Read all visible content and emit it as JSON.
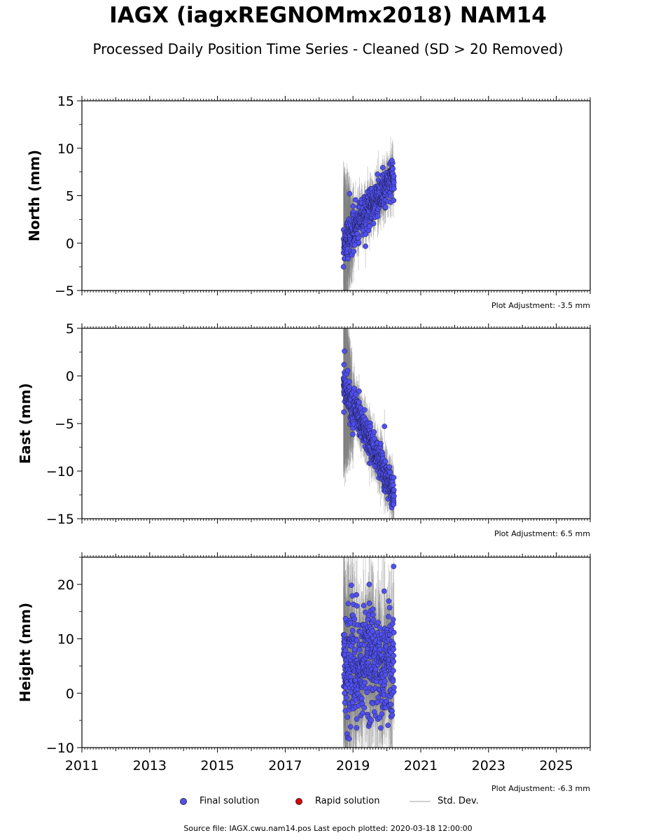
{
  "header": {
    "title": "IAGX (iagxREGNOMmx2018) NAM14",
    "subtitle": "Processed Daily Position Time Series - Cleaned (SD > 20 Removed)"
  },
  "legend": {
    "final": "Final solution",
    "rapid": "Rapid solution",
    "std": "Std. Dev."
  },
  "footer": "Source file: IAGX.cwu.nam14.pos  Last epoch plotted: 2020-03-18 12:00:00",
  "colors": {
    "final": "#5050f0",
    "rapid": "#e00000",
    "std": "#7a7a7a"
  },
  "chart_data": [
    {
      "type": "scatter",
      "ylabel": "North (mm)",
      "xlim": [
        2011,
        2026
      ],
      "ylim": [
        -5,
        15
      ],
      "yticks": [
        -5,
        0,
        5,
        10,
        15
      ],
      "xticks": [
        2011,
        2013,
        2015,
        2017,
        2019,
        2021,
        2023,
        2025
      ],
      "show_x_tick_labels": false,
      "adjustment": "Plot Adjustment: -3.5 mm",
      "trend": {
        "t0": 2018.72,
        "t1": 2020.21,
        "y0": 0.0,
        "y1": 7.0
      },
      "scatter_sd": 1.0,
      "std_early": 7.0,
      "std_late": 1.2,
      "sample_points": [
        [
          2018.72,
          -2.5
        ],
        [
          2018.9,
          5.2
        ],
        [
          2019.05,
          -0.2
        ],
        [
          2020.2,
          4.5
        ],
        [
          2020.15,
          8.7
        ]
      ]
    },
    {
      "type": "scatter",
      "ylabel": "East (mm)",
      "xlim": [
        2011,
        2026
      ],
      "ylim": [
        -15,
        5
      ],
      "yticks": [
        -15,
        -10,
        -5,
        0,
        5
      ],
      "xticks": [
        2011,
        2013,
        2015,
        2017,
        2019,
        2021,
        2023,
        2025
      ],
      "show_x_tick_labels": false,
      "adjustment": "Plot Adjustment: 6.5 mm",
      "trend": {
        "t0": 2018.72,
        "t1": 2020.21,
        "y0": -1.0,
        "y1": -12.3
      },
      "scatter_sd": 0.9,
      "std_early": 9.0,
      "std_late": 1.2,
      "sample_points": [
        [
          2018.75,
          2.6
        ],
        [
          2018.73,
          -3.8
        ],
        [
          2019.18,
          -1.6
        ],
        [
          2019.93,
          -5.3
        ],
        [
          2020.2,
          -13.5
        ]
      ]
    },
    {
      "type": "scatter",
      "ylabel": "Height (mm)",
      "xlim": [
        2011,
        2026
      ],
      "ylim": [
        -10,
        25
      ],
      "yticks": [
        -10,
        0,
        10,
        20
      ],
      "xticks": [
        2011,
        2013,
        2015,
        2017,
        2019,
        2021,
        2023,
        2025
      ],
      "xtick_labels": [
        "2011",
        "2013",
        "2015",
        "2017",
        "2019",
        "2021",
        "2023",
        "2025"
      ],
      "show_x_tick_labels": true,
      "adjustment": "Plot Adjustment: -6.3 mm",
      "trend": {
        "t0": 2018.72,
        "t1": 2020.21,
        "y0": 5.0,
        "y1": 5.0
      },
      "scatter_sd": 5.0,
      "std_early": 12.0,
      "std_late": 6.0,
      "sample_points": [
        [
          2018.78,
          13.7
        ],
        [
          2018.75,
          0.0
        ],
        [
          2019.48,
          20.0
        ],
        [
          2020.2,
          23.3
        ],
        [
          2019.82,
          -6.4
        ]
      ]
    }
  ]
}
